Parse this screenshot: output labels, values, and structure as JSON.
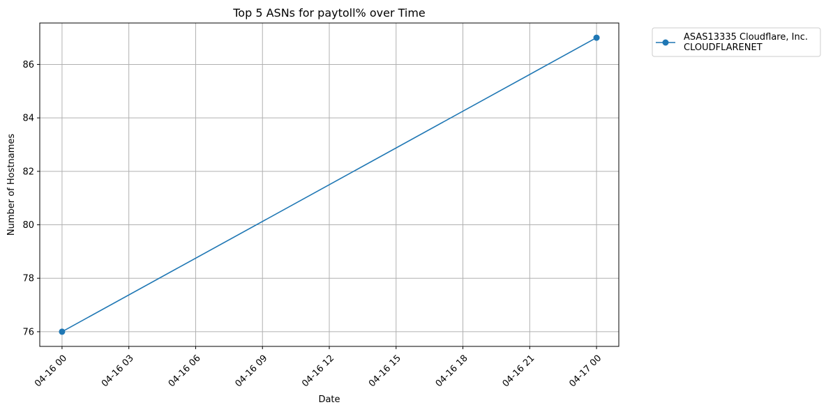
{
  "chart_data": {
    "type": "line",
    "title": "Top 5 ASNs for paytoll% over Time",
    "xlabel": "Date",
    "ylabel": "Number of Hostnames",
    "x_ticks": [
      "04-16 00",
      "04-16 03",
      "04-16 06",
      "04-16 09",
      "04-16 12",
      "04-16 15",
      "04-16 18",
      "04-16 21",
      "04-17 00"
    ],
    "x_tick_hours": [
      0,
      3,
      6,
      9,
      12,
      15,
      18,
      21,
      24
    ],
    "y_ticks": [
      76,
      78,
      80,
      82,
      84,
      86
    ],
    "xlim_hours": [
      -1,
      25
    ],
    "ylim": [
      75.45,
      87.55
    ],
    "grid": true,
    "legend_position": "outside-top-right",
    "series": [
      {
        "name_lines": [
          "ASAS13335 Cloudflare, Inc.",
          "CLOUDFLARENET"
        ],
        "color": "#1f77b4",
        "marker": "circle",
        "x": [
          "04-16 00",
          "04-17 00"
        ],
        "x_hours": [
          0,
          24
        ],
        "y": [
          76,
          87
        ]
      }
    ]
  }
}
